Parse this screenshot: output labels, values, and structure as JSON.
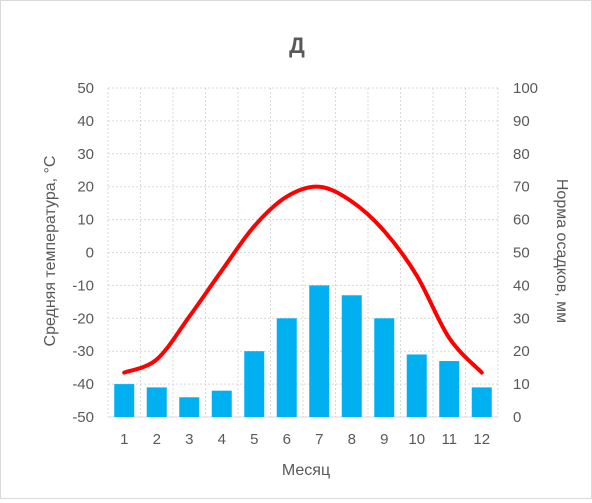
{
  "chart_data": {
    "type": "bar+line",
    "title": "Д",
    "xlabel": "Месяц",
    "ylabel_left": "Средняя температура, °C",
    "ylabel_right": "Норма осадков, мм",
    "categories": [
      "1",
      "2",
      "3",
      "4",
      "5",
      "6",
      "7",
      "8",
      "9",
      "10",
      "11",
      "12"
    ],
    "series": [
      {
        "type": "line",
        "axis": "left",
        "color": "#ff0000",
        "values": [
          -36.5,
          -32.5,
          -19.5,
          -5.5,
          8,
          17,
          20,
          15.5,
          6.5,
          -7,
          -26,
          -36.5
        ]
      },
      {
        "type": "bar",
        "axis": "right",
        "color": "#00b0f0",
        "values": [
          10,
          9,
          6,
          8,
          20,
          30,
          40,
          37,
          30,
          19,
          17,
          9
        ]
      }
    ],
    "ylim_left": [
      -50,
      50
    ],
    "yticks_left": [
      "50",
      "40",
      "30",
      "20",
      "10",
      "0",
      "-10",
      "-20",
      "-30",
      "-40",
      "-50"
    ],
    "ylim_right": [
      0,
      100
    ],
    "yticks_right": [
      "100",
      "90",
      "80",
      "70",
      "60",
      "50",
      "40",
      "30",
      "20",
      "10",
      "0"
    ],
    "grid": true,
    "legend": "none"
  }
}
